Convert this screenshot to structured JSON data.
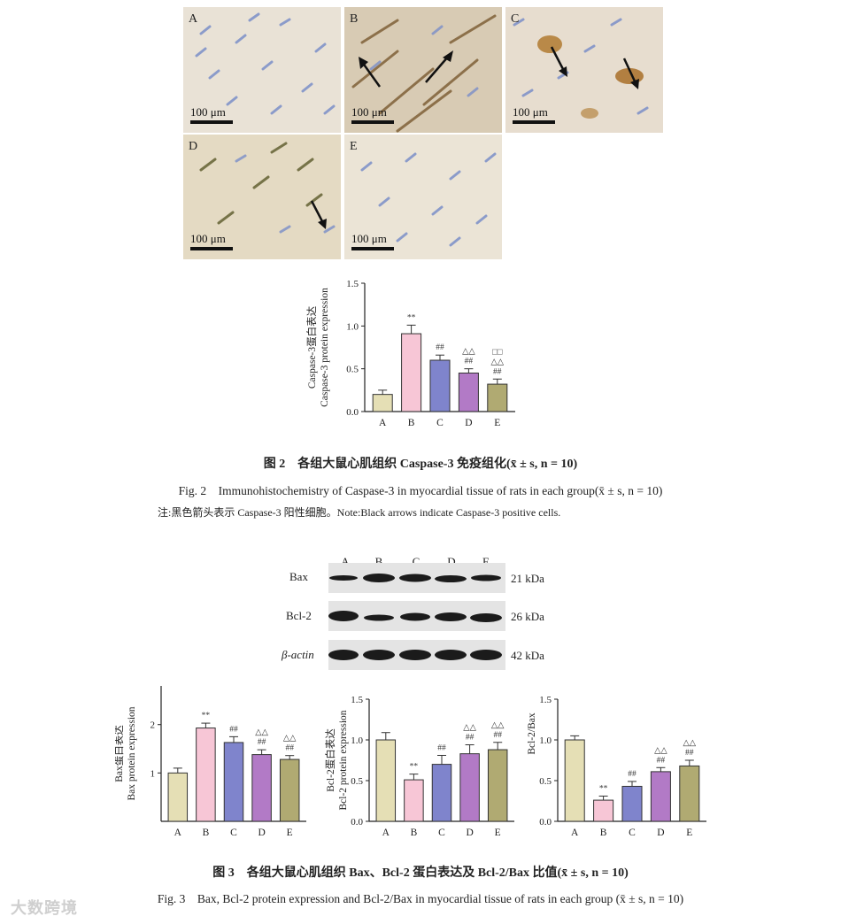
{
  "fig2": {
    "panels": [
      {
        "label": "A",
        "scale": "100 μm"
      },
      {
        "label": "B",
        "scale": "100 μm"
      },
      {
        "label": "C",
        "scale": "100 μm"
      },
      {
        "label": "D",
        "scale": "100 μm"
      },
      {
        "label": "E",
        "scale": "100 μm"
      }
    ],
    "caption_cn": "图 2　各组大鼠心肌组织 Caspase-3 免疫组化(x̄ ± s, n = 10)",
    "caption_en": "Fig. 2　Immunohistochemistry of Caspase-3 in myocardial tissue of rats in each group(x̄ ± s, n = 10)",
    "note": "注:黑色箭头表示 Caspase-3 阳性细胞。Note:Black arrows indicate Caspase-3 positive cells."
  },
  "fig3": {
    "blot_columns": [
      "A",
      "B",
      "C",
      "D",
      "E"
    ],
    "blot_rows": [
      {
        "name": "Bax",
        "kda": "21 kDa"
      },
      {
        "name": "Bcl-2",
        "kda": "26 kDa"
      },
      {
        "name": "β-actin",
        "kda": "42 kDa"
      }
    ],
    "caption_cn": "图 3　各组大鼠心肌组织 Bax、Bcl-2 蛋白表达及 Bcl-2/Bax 比值(x̄ ± s, n = 10)",
    "caption_en": "Fig. 3　Bax, Bcl-2 protein expression and Bcl-2/Bax in myocardial tissue of rats in each group (x̄ ± s, n = 10)"
  },
  "watermark": "大数跨境",
  "chart_data": [
    {
      "id": "caspase3",
      "type": "bar",
      "categories": [
        "A",
        "B",
        "C",
        "D",
        "E"
      ],
      "values": [
        0.2,
        0.91,
        0.6,
        0.45,
        0.32
      ],
      "errors": [
        0.05,
        0.1,
        0.06,
        0.05,
        0.06
      ],
      "annotations": [
        [],
        [
          "**"
        ],
        [
          "##"
        ],
        [
          "##",
          "△△"
        ],
        [
          "##",
          "△△",
          "□□"
        ]
      ],
      "ylabel_cn": "Caspase-3蛋白表达",
      "ylabel_en": "Caspase-3 protein expression",
      "ylim": [
        0,
        1.5
      ],
      "yticks": [
        "0.0",
        "0.5",
        "1.0",
        "1.5"
      ],
      "colors": [
        "#e5dfb5",
        "#f7c6d6",
        "#7f84cc",
        "#b27ac6",
        "#b0aa72"
      ]
    },
    {
      "id": "bax",
      "type": "bar",
      "categories": [
        "A",
        "B",
        "C",
        "D",
        "E"
      ],
      "values": [
        1.0,
        1.93,
        1.63,
        1.38,
        1.28
      ],
      "errors": [
        0.1,
        0.1,
        0.12,
        0.1,
        0.08
      ],
      "annotations": [
        [],
        [
          "**"
        ],
        [
          "##"
        ],
        [
          "##",
          "△△"
        ],
        [
          "##",
          "△△"
        ]
      ],
      "ylabel_cn": "Bax蛋白表达",
      "ylabel_en": "Bax protein expression",
      "ylim": [
        0,
        2.8
      ],
      "yticks": [
        "1",
        "2"
      ],
      "colors": [
        "#e5dfb5",
        "#f7c6d6",
        "#7f84cc",
        "#b27ac6",
        "#b0aa72"
      ]
    },
    {
      "id": "bcl2",
      "type": "bar",
      "categories": [
        "A",
        "B",
        "C",
        "D",
        "E"
      ],
      "values": [
        1.0,
        0.51,
        0.7,
        0.83,
        0.88
      ],
      "errors": [
        0.09,
        0.07,
        0.11,
        0.11,
        0.09
      ],
      "annotations": [
        [],
        [
          "**"
        ],
        [
          "##"
        ],
        [
          "##",
          "△△"
        ],
        [
          "##",
          "△△"
        ]
      ],
      "ylabel_cn": "Bcl-2蛋白表达",
      "ylabel_en": "Bcl-2 protein expression",
      "ylim": [
        0,
        1.5
      ],
      "yticks": [
        "0.0",
        "0.5",
        "1.0",
        "1.5"
      ],
      "colors": [
        "#e5dfb5",
        "#f7c6d6",
        "#7f84cc",
        "#b27ac6",
        "#b0aa72"
      ]
    },
    {
      "id": "ratio",
      "type": "bar",
      "categories": [
        "A",
        "B",
        "C",
        "D",
        "E"
      ],
      "values": [
        1.0,
        0.26,
        0.43,
        0.61,
        0.68
      ],
      "errors": [
        0.05,
        0.05,
        0.06,
        0.05,
        0.07
      ],
      "annotations": [
        [],
        [
          "**"
        ],
        [
          "##"
        ],
        [
          "##",
          "△△"
        ],
        [
          "##",
          "△△"
        ]
      ],
      "ylabel_cn": "",
      "ylabel_en": "Bcl-2/Bax",
      "ylim": [
        0,
        1.5
      ],
      "yticks": [
        "0.0",
        "0.5",
        "1.0",
        "1.5"
      ],
      "colors": [
        "#e5dfb5",
        "#f7c6d6",
        "#7f84cc",
        "#b27ac6",
        "#b0aa72"
      ]
    }
  ]
}
